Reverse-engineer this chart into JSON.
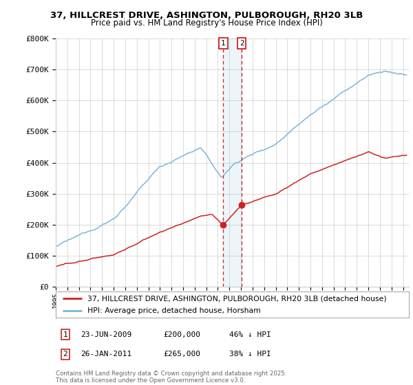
{
  "title1": "37, HILLCREST DRIVE, ASHINGTON, PULBOROUGH, RH20 3LB",
  "title2": "Price paid vs. HM Land Registry's House Price Index (HPI)",
  "ylabel_ticks": [
    "£0",
    "£100K",
    "£200K",
    "£300K",
    "£400K",
    "£500K",
    "£600K",
    "£700K",
    "£800K"
  ],
  "ytick_vals": [
    0,
    100000,
    200000,
    300000,
    400000,
    500000,
    600000,
    700000,
    800000
  ],
  "ylim": [
    0,
    800000
  ],
  "hpi_color": "#7db5d8",
  "price_color": "#cc2222",
  "purchase1": {
    "date_num": 2009.47,
    "price": 200000,
    "label": "1"
  },
  "purchase2": {
    "date_num": 2011.07,
    "price": 265000,
    "label": "2"
  },
  "legend_line1": "37, HILLCREST DRIVE, ASHINGTON, PULBOROUGH, RH20 3LB (detached house)",
  "legend_line2": "HPI: Average price, detached house, Horsham",
  "footnote": "Contains HM Land Registry data © Crown copyright and database right 2025.\nThis data is licensed under the Open Government Licence v3.0.",
  "background_color": "#ffffff",
  "grid_color": "#cccccc",
  "ann1_date": "23-JUN-2009",
  "ann1_price": "£200,000",
  "ann1_hpi": "46% ↓ HPI",
  "ann2_date": "26-JAN-2011",
  "ann2_price": "£265,000",
  "ann2_hpi": "38% ↓ HPI"
}
